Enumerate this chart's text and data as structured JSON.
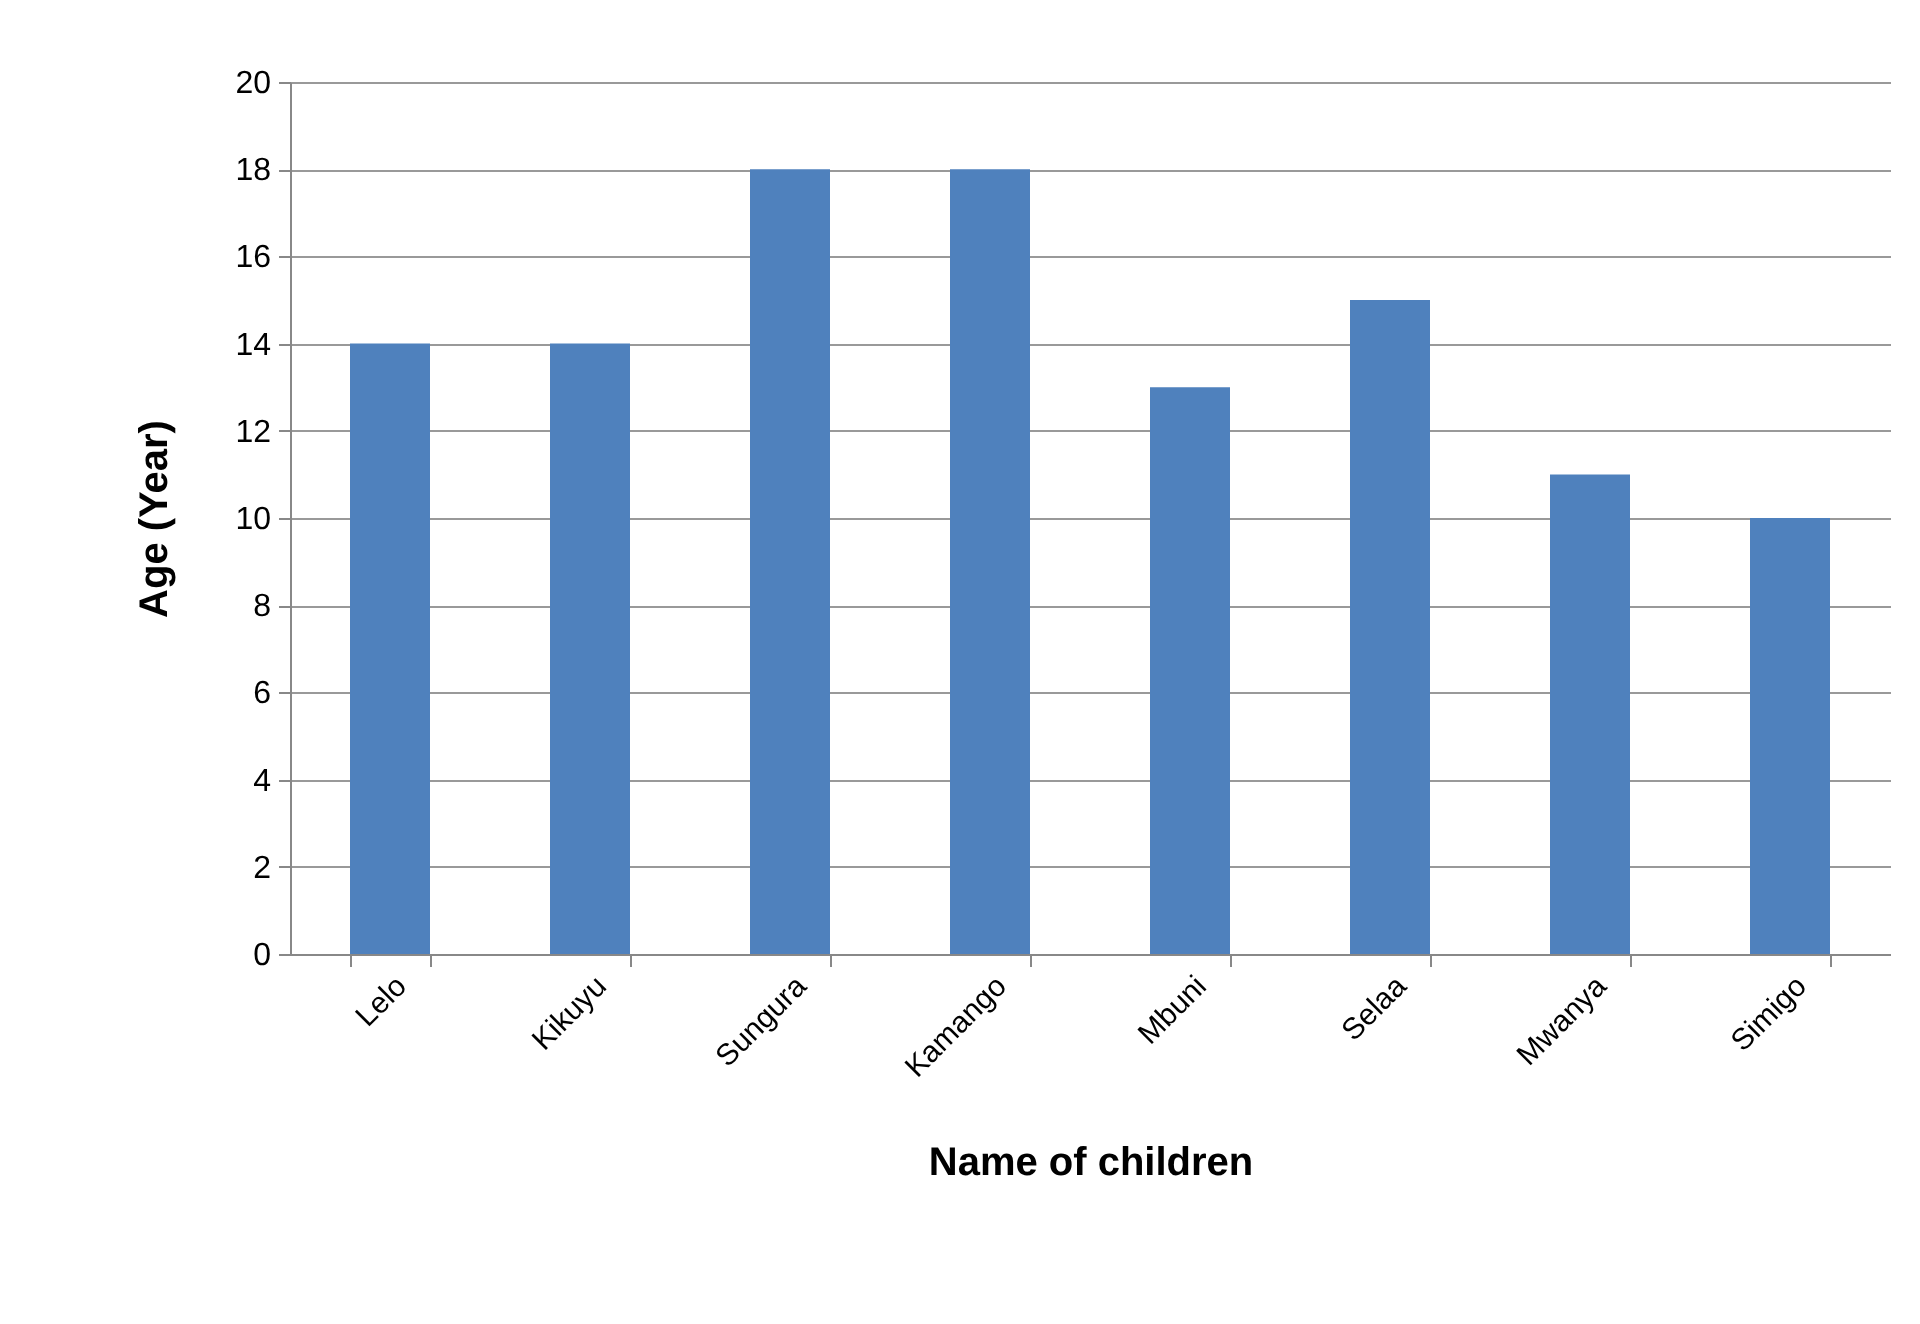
{
  "chart_data": {
    "type": "bar",
    "xlabel": "Name of children",
    "ylabel": "Age  (Year)",
    "categories": [
      "Lelo",
      "Kikuyu",
      "Sungura",
      "Kamango",
      "Mbuni",
      "Selaa",
      "Mwanya",
      "Simigo"
    ],
    "values": [
      14,
      14,
      18,
      18,
      13,
      15,
      11,
      10
    ],
    "color": "#4f81bd",
    "ylim": [
      0,
      20
    ],
    "yticks": [
      0,
      2,
      4,
      6,
      8,
      10,
      12,
      14,
      16,
      18,
      20
    ],
    "grid": "y"
  }
}
